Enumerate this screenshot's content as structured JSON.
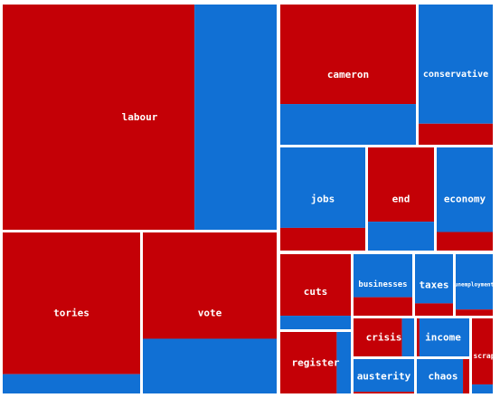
{
  "chart_data": {
    "type": "treemap",
    "colors": {
      "red": "#c40006",
      "blue": "#1170d4",
      "border": "#ffffff"
    },
    "cells": [
      {
        "label": "labour",
        "value": 100,
        "red_share": 0.7,
        "split": "vertical"
      },
      {
        "label": "tories",
        "value": 52,
        "red_share": 0.88,
        "split": "horizontal"
      },
      {
        "label": "vote",
        "value": 51,
        "red_share": 0.66,
        "split": "horizontal"
      },
      {
        "label": "cameron",
        "value": 27,
        "red_share": 0.71,
        "split": "horizontal"
      },
      {
        "label": "conservative",
        "value": 15,
        "red_share": 0.15,
        "split": "horizontal-bottom"
      },
      {
        "label": "jobs",
        "value": 18,
        "red_share": 0.22,
        "split": "horizontal-bottom"
      },
      {
        "label": "end",
        "value": 14,
        "red_share": 0.72,
        "split": "horizontal"
      },
      {
        "label": "economy",
        "value": 14,
        "red_share": 0.18,
        "split": "horizontal-bottom"
      },
      {
        "label": "cuts",
        "value": 14,
        "red_share": 0.82,
        "split": "horizontal"
      },
      {
        "label": "businesses",
        "value": 9,
        "red_share": 0.3,
        "split": "horizontal-bottom"
      },
      {
        "label": "taxes",
        "value": 6,
        "red_share": 0.2,
        "split": "horizontal-bottom"
      },
      {
        "label": "unemployment",
        "value": 6,
        "red_share": 0.1,
        "split": "horizontal-bottom"
      },
      {
        "label": "register",
        "value": 11,
        "red_share": 0.8,
        "split": "vertical"
      },
      {
        "label": "crisis",
        "value": 7,
        "red_share": 0.8,
        "split": "vertical"
      },
      {
        "label": "income",
        "value": 7,
        "red_share": 0.05,
        "split": "vertical"
      },
      {
        "label": "austerity",
        "value": 6,
        "red_share": 0.05,
        "split": "horizontal-bottom"
      },
      {
        "label": "chaos",
        "value": 6,
        "red_share": 0.88,
        "split": "vertical-right"
      },
      {
        "label": "scrap",
        "value": 4,
        "red_share": 0.88,
        "split": "horizontal"
      }
    ]
  }
}
